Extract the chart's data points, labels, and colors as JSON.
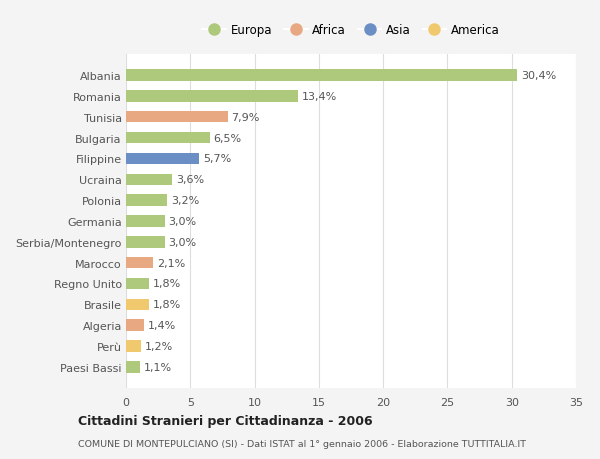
{
  "countries": [
    "Albania",
    "Romania",
    "Tunisia",
    "Bulgaria",
    "Filippine",
    "Ucraina",
    "Polonia",
    "Germania",
    "Serbia/Montenegro",
    "Marocco",
    "Regno Unito",
    "Brasile",
    "Algeria",
    "Perù",
    "Paesi Bassi"
  ],
  "values": [
    30.4,
    13.4,
    7.9,
    6.5,
    5.7,
    3.6,
    3.2,
    3.0,
    3.0,
    2.1,
    1.8,
    1.8,
    1.4,
    1.2,
    1.1
  ],
  "labels": [
    "30,4%",
    "13,4%",
    "7,9%",
    "6,5%",
    "5,7%",
    "3,6%",
    "3,2%",
    "3,0%",
    "3,0%",
    "2,1%",
    "1,8%",
    "1,8%",
    "1,4%",
    "1,2%",
    "1,1%"
  ],
  "regions": [
    "Europa",
    "Europa",
    "Africa",
    "Europa",
    "Asia",
    "Europa",
    "Europa",
    "Europa",
    "Europa",
    "Africa",
    "Europa",
    "America",
    "Africa",
    "America",
    "Europa"
  ],
  "colors": {
    "Europa": "#aec87c",
    "Africa": "#e8a882",
    "Asia": "#6b8ec4",
    "America": "#f0c96e"
  },
  "legend_order": [
    "Europa",
    "Africa",
    "Asia",
    "America"
  ],
  "title": "Cittadini Stranieri per Cittadinanza - 2006",
  "subtitle": "COMUNE DI MONTEPULCIANO (SI) - Dati ISTAT al 1° gennaio 2006 - Elaborazione TUTTITALIA.IT",
  "xlim": [
    0,
    35
  ],
  "xticks": [
    0,
    5,
    10,
    15,
    20,
    25,
    30,
    35
  ],
  "background_color": "#f4f4f4",
  "plot_bg_color": "#ffffff",
  "grid_color": "#dddddd",
  "bar_height": 0.55,
  "label_fontsize": 8,
  "ytick_fontsize": 8,
  "xtick_fontsize": 8
}
